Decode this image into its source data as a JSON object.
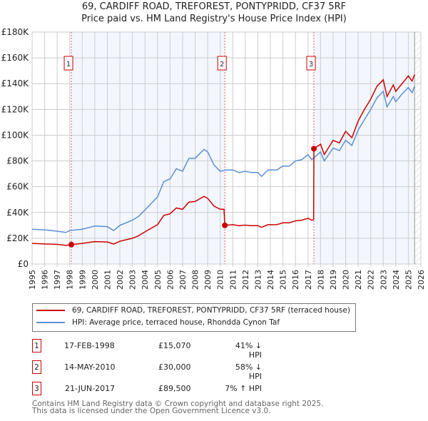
{
  "title": "69, CARDIFF ROAD, TREFOREST, PONTYPRIDD, CF37 5RF",
  "subtitle": "Price paid vs. HM Land Registry's House Price Index (HPI)",
  "legend": [
    {
      "label": "69, CARDIFF ROAD, TREFOREST, PONTYPRIDD, CF37 5RF (terraced house)",
      "color": "#cc0000"
    },
    {
      "label": "HPI: Average price, terraced house, Rhondda Cynon Taf",
      "color": "#5b8fd4"
    }
  ],
  "sales": [
    {
      "num": "1",
      "date": "17-FEB-1998",
      "price": "£15,070",
      "hpi": "41% ↓ HPI",
      "x": 1998.13,
      "y": 15.07
    },
    {
      "num": "2",
      "date": "14-MAY-2010",
      "price": "£30,000",
      "hpi": "58% ↓ HPI",
      "x": 2010.37,
      "y": 30
    },
    {
      "num": "3",
      "date": "21-JUN-2017",
      "price": "£89,500",
      "hpi": "7% ↑ HPI",
      "x": 2017.47,
      "y": 89.5
    }
  ],
  "footer": {
    "line1": "Contains HM Land Registry data © Crown copyright and database right 2025.",
    "line2": "This data is licensed under the Open Government Licence v3.0."
  },
  "chart_data": {
    "type": "line",
    "title": "69, CARDIFF ROAD, TREFOREST, PONTYPRIDD, CF37 5RF",
    "xlim": [
      1995,
      2026
    ],
    "ylim": [
      0,
      180
    ],
    "xticks": [
      "1995",
      "1996",
      "1997",
      "1998",
      "1999",
      "2000",
      "2001",
      "2002",
      "2003",
      "2004",
      "2005",
      "2006",
      "2007",
      "2008",
      "2009",
      "2010",
      "2011",
      "2012",
      "2013",
      "2014",
      "2015",
      "2016",
      "2017",
      "2018",
      "2019",
      "2020",
      "2021",
      "2022",
      "2023",
      "2024",
      "2025",
      "2026"
    ],
    "yticks": [
      {
        "v": 0,
        "l": "£0"
      },
      {
        "v": 20,
        "l": "£20K"
      },
      {
        "v": 40,
        "l": "£40K"
      },
      {
        "v": 60,
        "l": "£60K"
      },
      {
        "v": 80,
        "l": "£80K"
      },
      {
        "v": 100,
        "l": "£100K"
      },
      {
        "v": 120,
        "l": "£120K"
      },
      {
        "v": 140,
        "l": "£140K"
      },
      {
        "v": 160,
        "l": "£160K"
      },
      {
        "v": 180,
        "l": "£180K"
      }
    ],
    "forecast_from": 2025.5,
    "series": [
      {
        "name": "property",
        "color": "#cc0000",
        "points": [
          [
            1995,
            16
          ],
          [
            1996,
            15.6
          ],
          [
            1997,
            15.3
          ],
          [
            1997.7,
            14.5
          ],
          [
            1998.13,
            15.07
          ],
          [
            1999,
            16
          ],
          [
            2000,
            17.4
          ],
          [
            2001,
            17.1
          ],
          [
            2001.5,
            15.5
          ],
          [
            2002,
            17.7
          ],
          [
            2003,
            20
          ],
          [
            2003.5,
            22
          ],
          [
            2004,
            25
          ],
          [
            2005,
            30.5
          ],
          [
            2005.5,
            37.7
          ],
          [
            2006,
            39
          ],
          [
            2006.5,
            43.5
          ],
          [
            2007,
            42.5
          ],
          [
            2007.5,
            48
          ],
          [
            2008,
            48.5
          ],
          [
            2008.7,
            52.5
          ],
          [
            2009,
            51
          ],
          [
            2009.5,
            45
          ],
          [
            2010,
            42.5
          ],
          [
            2010.3,
            42.5
          ],
          [
            2010.37,
            30
          ],
          [
            2011,
            30.5
          ],
          [
            2011.5,
            29.8
          ],
          [
            2012,
            30.2
          ],
          [
            2012.5,
            29.8
          ],
          [
            2013,
            29.8
          ],
          [
            2013.3,
            28.5
          ],
          [
            2013.8,
            30.5
          ],
          [
            2014.5,
            30.5
          ],
          [
            2015,
            32
          ],
          [
            2015.5,
            32
          ],
          [
            2016,
            33.5
          ],
          [
            2016.5,
            34
          ],
          [
            2017,
            35.5
          ],
          [
            2017.3,
            34
          ],
          [
            2017.45,
            34.5
          ],
          [
            2017.47,
            89.5
          ],
          [
            2018,
            93
          ],
          [
            2018.3,
            85
          ],
          [
            2019,
            96
          ],
          [
            2019.5,
            94
          ],
          [
            2020,
            103
          ],
          [
            2020.5,
            98
          ],
          [
            2021,
            111
          ],
          [
            2021.5,
            120
          ],
          [
            2022,
            128
          ],
          [
            2022.5,
            138
          ],
          [
            2023,
            143
          ],
          [
            2023.3,
            130
          ],
          [
            2023.8,
            139
          ],
          [
            2024,
            134
          ],
          [
            2024.5,
            140
          ],
          [
            2025,
            146
          ],
          [
            2025.3,
            142
          ],
          [
            2025.5,
            147
          ]
        ]
      },
      {
        "name": "hpi",
        "color": "#5b8fd4",
        "points": [
          [
            1995,
            27
          ],
          [
            1996,
            26.5
          ],
          [
            1997,
            25.5
          ],
          [
            1997.7,
            24.5
          ],
          [
            1998,
            26
          ],
          [
            1999,
            27
          ],
          [
            2000,
            29.5
          ],
          [
            2001,
            29
          ],
          [
            2001.5,
            26
          ],
          [
            2002,
            30
          ],
          [
            2003,
            34
          ],
          [
            2003.5,
            37
          ],
          [
            2004,
            42
          ],
          [
            2005,
            52
          ],
          [
            2005.5,
            64
          ],
          [
            2006,
            66
          ],
          [
            2006.5,
            74
          ],
          [
            2007,
            72
          ],
          [
            2007.5,
            82
          ],
          [
            2008,
            82
          ],
          [
            2008.7,
            89
          ],
          [
            2009,
            87
          ],
          [
            2009.5,
            77
          ],
          [
            2010,
            72
          ],
          [
            2010.5,
            73
          ],
          [
            2011,
            73
          ],
          [
            2011.5,
            71
          ],
          [
            2012,
            72
          ],
          [
            2012.5,
            71
          ],
          [
            2013,
            71
          ],
          [
            2013.3,
            68
          ],
          [
            2013.8,
            73
          ],
          [
            2014.5,
            73
          ],
          [
            2015,
            76
          ],
          [
            2015.5,
            76
          ],
          [
            2016,
            80
          ],
          [
            2016.5,
            81
          ],
          [
            2017,
            85
          ],
          [
            2017.3,
            81
          ],
          [
            2018,
            87
          ],
          [
            2018.3,
            80
          ],
          [
            2019,
            90
          ],
          [
            2019.5,
            88
          ],
          [
            2020,
            96
          ],
          [
            2020.5,
            92
          ],
          [
            2021,
            104
          ],
          [
            2021.5,
            112
          ],
          [
            2022,
            120
          ],
          [
            2022.5,
            129
          ],
          [
            2023,
            134
          ],
          [
            2023.3,
            122
          ],
          [
            2023.8,
            130
          ],
          [
            2024,
            126
          ],
          [
            2024.5,
            132
          ],
          [
            2025,
            137
          ],
          [
            2025.3,
            133
          ],
          [
            2025.5,
            138
          ]
        ]
      }
    ]
  }
}
